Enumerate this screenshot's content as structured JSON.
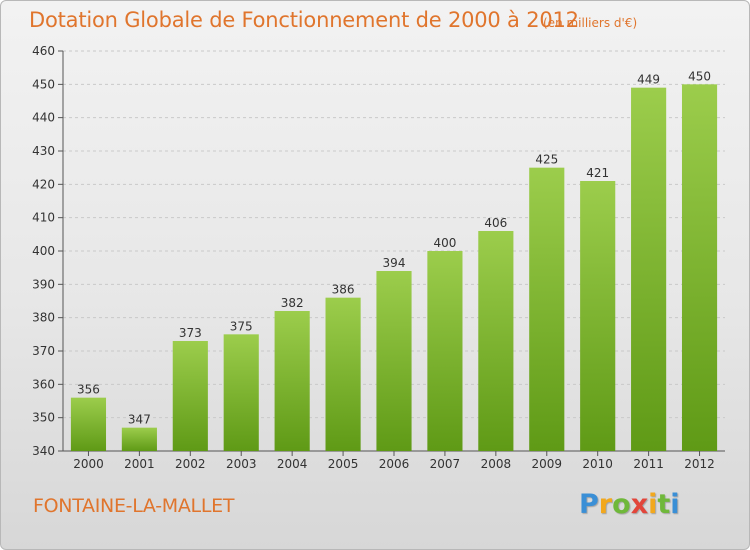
{
  "chart_data": {
    "type": "bar",
    "title": "Dotation Globale de Fonctionnement de 2000 à 2012",
    "unit_note": "(en milliers d'€)",
    "categories": [
      "2000",
      "2001",
      "2002",
      "2003",
      "2004",
      "2005",
      "2006",
      "2007",
      "2008",
      "2009",
      "2010",
      "2011",
      "2012"
    ],
    "values": [
      356,
      347,
      373,
      375,
      382,
      386,
      394,
      400,
      406,
      425,
      421,
      449,
      450
    ],
    "ylim": [
      340,
      460
    ],
    "yticks": [
      340,
      350,
      360,
      370,
      380,
      390,
      400,
      410,
      420,
      430,
      440,
      450,
      460
    ],
    "grid": true,
    "bar_color_top": "#9ccd4c",
    "bar_color_bottom": "#5f9a16"
  },
  "footer": {
    "commune": "FONTAINE-LA-MALLET",
    "logo": "Proxiti"
  }
}
